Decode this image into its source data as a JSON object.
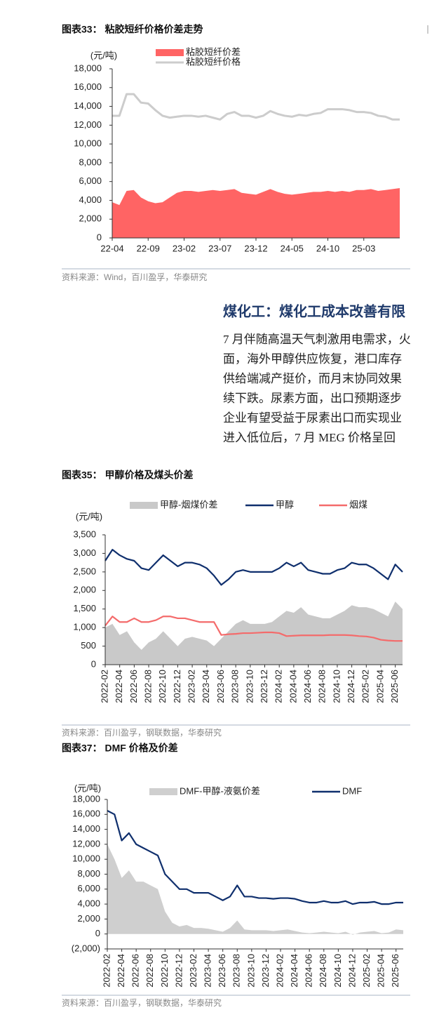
{
  "chart_data": [
    {
      "type": "combo",
      "title": "图表33： 粘胶短纤价格价差走势",
      "y_label": "(元/吨)",
      "source": "资料来源：Wind，百川盈孚，华泰研究",
      "categories": [
        "22-04",
        null,
        null,
        null,
        null,
        "22-09",
        null,
        null,
        null,
        null,
        "23-02",
        null,
        null,
        null,
        null,
        "23-07",
        null,
        null,
        null,
        null,
        "23-12",
        null,
        null,
        null,
        null,
        "24-05",
        null,
        null,
        null,
        null,
        "24-10",
        null,
        null,
        null,
        null,
        "25-03",
        null,
        null,
        null,
        null,
        null
      ],
      "series": [
        {
          "name": "粘胶短纤价差",
          "type": "area",
          "color": "#ff6464",
          "values": [
            3800,
            3500,
            5000,
            5100,
            4300,
            3900,
            3700,
            3800,
            4300,
            4800,
            5000,
            5000,
            4900,
            5000,
            5100,
            5000,
            5100,
            5200,
            4800,
            4700,
            4600,
            4900,
            5200,
            4900,
            4700,
            4600,
            4700,
            4800,
            4900,
            4900,
            5000,
            4900,
            5000,
            4900,
            5100,
            5100,
            5200,
            5000,
            5100,
            5200,
            5300
          ]
        },
        {
          "name": "粘胶短纤价格",
          "type": "line",
          "color": "#cccccc",
          "values": [
            13000,
            13000,
            15300,
            15300,
            14400,
            14300,
            13600,
            13000,
            12800,
            12900,
            13000,
            13000,
            12900,
            13000,
            12800,
            12600,
            13200,
            13400,
            13000,
            13000,
            12800,
            13000,
            13500,
            13200,
            13000,
            12900,
            13100,
            13000,
            13200,
            13300,
            13700,
            13700,
            13700,
            13600,
            13400,
            13400,
            13300,
            13000,
            12900,
            12600,
            12600
          ]
        }
      ],
      "ylim": [
        0,
        18000
      ],
      "yticks": [
        0,
        {
          "value": 2000,
          "label": "2,000"
        },
        {
          "value": 4000,
          "label": "4,000"
        },
        {
          "value": 6000,
          "label": "6,000"
        },
        {
          "value": 8000,
          "label": "8,000"
        },
        {
          "value": 10000,
          "label": "10,000"
        },
        {
          "value": 12000,
          "label": "12,000"
        },
        {
          "value": 14000,
          "label": "14,000"
        },
        {
          "value": 16000,
          "label": "16,000"
        },
        {
          "value": 18000,
          "label": "18,000"
        }
      ],
      "grid": false
    },
    {
      "type": "combo",
      "title": "图表35： 甲醇价格及煤头价差",
      "y_label": "(元/吨)",
      "source": "资料来源：百川盈孚，钢联数据，华泰研究",
      "categories": [
        "2022-02",
        null,
        "2022-04",
        null,
        "2022-06",
        null,
        "2022-08",
        null,
        "2022-10",
        null,
        "2022-12",
        null,
        "2023-02",
        null,
        "2023-04",
        null,
        "2023-06",
        null,
        "2023-08",
        null,
        "2023-10",
        null,
        "2023-12",
        null,
        "2024-02",
        null,
        "2024-04",
        null,
        "2024-06",
        null,
        "2024-08",
        null,
        "2024-10",
        null,
        "2024-12",
        null,
        "2025-02",
        null,
        "2025-04",
        null,
        "2025-06",
        null
      ],
      "series": [
        {
          "name": "甲醇-烟煤价差",
          "type": "area",
          "color": "#c9c9c9",
          "values": [
            1000,
            1100,
            800,
            900,
            600,
            400,
            600,
            700,
            900,
            700,
            500,
            700,
            750,
            700,
            650,
            500,
            700,
            900,
            1100,
            1200,
            1100,
            1100,
            1100,
            1150,
            1300,
            1450,
            1400,
            1550,
            1350,
            1300,
            1250,
            1250,
            1350,
            1450,
            1600,
            1550,
            1550,
            1500,
            1400,
            1300,
            1700,
            1500
          ]
        },
        {
          "name": "甲醇",
          "type": "line",
          "color": "#0f2f6d",
          "values": [
            2800,
            3100,
            2950,
            2850,
            2800,
            2600,
            2550,
            2750,
            2950,
            2800,
            2650,
            2750,
            2750,
            2700,
            2600,
            2400,
            2150,
            2300,
            2500,
            2550,
            2500,
            2500,
            2500,
            2500,
            2600,
            2750,
            2650,
            2750,
            2550,
            2500,
            2450,
            2450,
            2550,
            2600,
            2750,
            2700,
            2700,
            2600,
            2450,
            2300,
            2700,
            2500
          ]
        },
        {
          "name": "烟煤",
          "type": "line",
          "color": "#f46b6b",
          "values": [
            1050,
            1300,
            1150,
            1150,
            1250,
            1150,
            1150,
            1200,
            1300,
            1300,
            1250,
            1250,
            1200,
            1150,
            1150,
            1150,
            800,
            820,
            830,
            850,
            850,
            860,
            870,
            870,
            850,
            770,
            780,
            790,
            790,
            790,
            790,
            800,
            800,
            800,
            790,
            770,
            760,
            730,
            670,
            650,
            640,
            640
          ]
        }
      ],
      "ylim": [
        0,
        3500
      ],
      "yticks": [
        0,
        500,
        {
          "value": 1000,
          "label": "1,000"
        },
        {
          "value": 1500,
          "label": "1,500"
        },
        {
          "value": 2000,
          "label": "2,000"
        },
        {
          "value": 2500,
          "label": "2,500"
        },
        {
          "value": 3000,
          "label": "3,000"
        },
        {
          "value": 3500,
          "label": "3,500"
        }
      ],
      "grid": false
    },
    {
      "type": "combo",
      "title": "图表37： DMF 价格及价差",
      "y_label": "(元/吨)",
      "source": "资料来源：百川盈孚，钢联数据，华泰研究",
      "categories": [
        "2022-02",
        null,
        "2022-04",
        null,
        "2022-06",
        null,
        "2022-08",
        null,
        "2022-10",
        null,
        "2022-12",
        null,
        "2023-02",
        null,
        "2023-04",
        null,
        "2023-06",
        null,
        "2023-08",
        null,
        "2023-10",
        null,
        "2023-12",
        null,
        "2024-02",
        null,
        "2024-04",
        null,
        "2024-06",
        null,
        "2024-08",
        null,
        "2024-10",
        null,
        "2024-12",
        null,
        "2025-02",
        null,
        "2025-04",
        null,
        "2025-06",
        null
      ],
      "series": [
        {
          "name": "DMF-甲醇-液氨价差",
          "type": "area",
          "color": "#cfcfcf",
          "values": [
            12000,
            10000,
            7500,
            8500,
            7000,
            7000,
            6500,
            6000,
            3000,
            1500,
            1000,
            1200,
            800,
            800,
            700,
            500,
            300,
            800,
            1800,
            600,
            500,
            500,
            500,
            400,
            500,
            600,
            400,
            200,
            100,
            200,
            300,
            200,
            100,
            300,
            -100,
            200,
            300,
            400,
            100,
            200,
            600,
            500
          ]
        },
        {
          "name": "DMF",
          "type": "line",
          "color": "#0f2f6d",
          "values": [
            16500,
            16000,
            12500,
            13500,
            12000,
            11500,
            11000,
            10500,
            8000,
            7000,
            6000,
            6000,
            5500,
            5500,
            5500,
            5000,
            4500,
            5000,
            6500,
            5000,
            5000,
            4800,
            4800,
            4700,
            4800,
            4800,
            4700,
            4400,
            4200,
            4200,
            4400,
            4200,
            4200,
            4400,
            4000,
            4200,
            4200,
            4300,
            4000,
            4000,
            4200,
            4200
          ]
        }
      ],
      "ylim": [
        -2000,
        18000
      ],
      "yticks": [
        {
          "value": -2000,
          "label": "(2,000)"
        },
        0,
        {
          "value": 2000,
          "label": "2,000"
        },
        {
          "value": 4000,
          "label": "4,000"
        },
        {
          "value": 6000,
          "label": "6,000"
        },
        {
          "value": 8000,
          "label": "8,000"
        },
        {
          "value": 10000,
          "label": "10,000"
        },
        {
          "value": 12000,
          "label": "12,000"
        },
        {
          "value": 14000,
          "label": "14,000"
        },
        {
          "value": 16000,
          "label": "16,000"
        },
        {
          "value": 18000,
          "label": "18,000"
        }
      ],
      "grid": false
    }
  ],
  "article": {
    "heading": "煤化工：煤化工成本改善有限",
    "lines": [
      "7 月伴随高温天气刺激用电需求，火",
      "面，海外甲醇供应恢复，港口库存",
      "供给端减产挺价，而月末协同效果",
      "续下跌。尿素方面，出口预期逐步",
      "企业有望受益于尿素出口而实现业",
      "进入低位后，7 月 MEG 价格呈回"
    ]
  }
}
